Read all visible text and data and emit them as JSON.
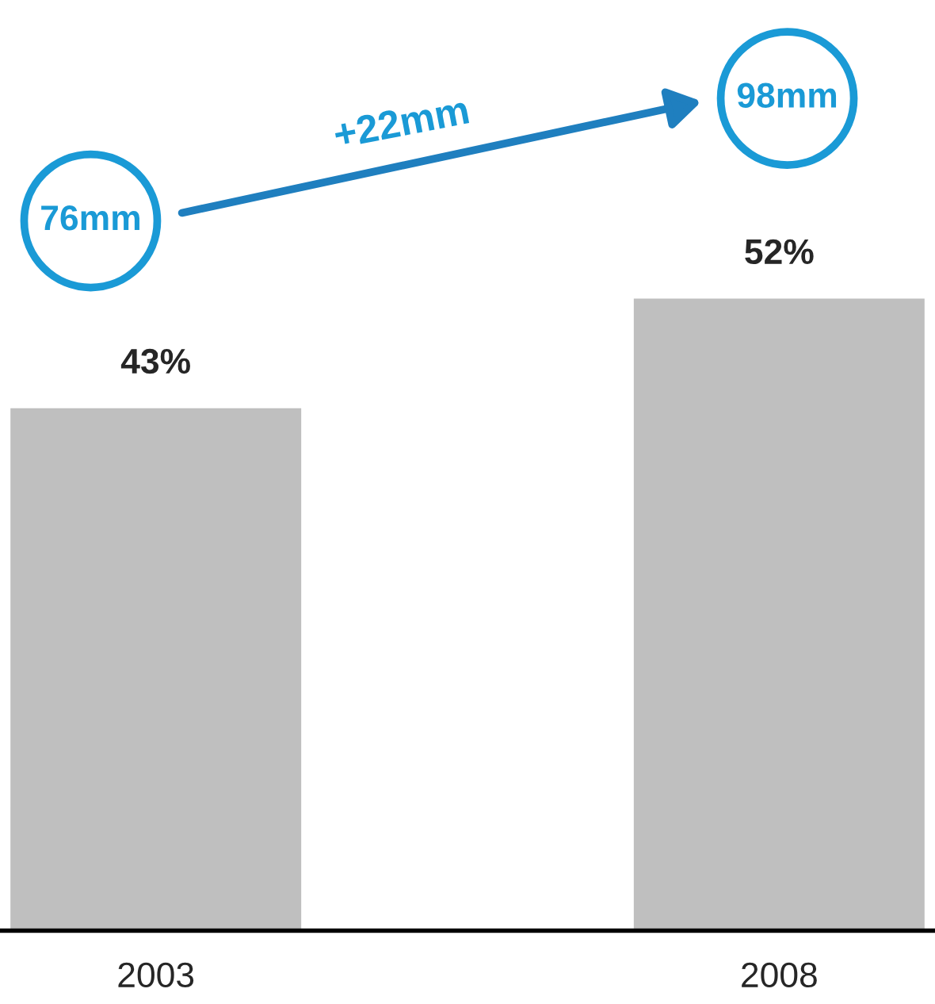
{
  "chart_data": {
    "type": "bar",
    "categories": [
      "2003",
      "2008"
    ],
    "values": [
      43,
      52
    ],
    "value_labels": [
      "43%",
      "52%"
    ],
    "color": "#bfbfbf",
    "tick_labels": "x",
    "grid": false,
    "legend": false,
    "annotations": [
      "76mm",
      "98mm",
      "+22mm"
    ]
  }
}
